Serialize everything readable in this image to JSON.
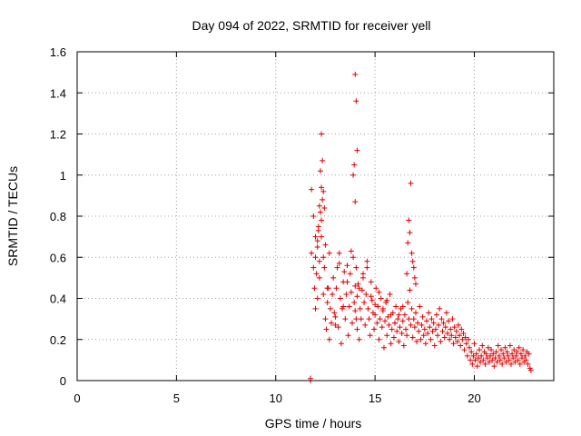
{
  "chart_data": {
    "type": "scatter",
    "title": "Day 094 of 2022, SRMTID for receiver yell",
    "xlabel": "GPS time / hours",
    "ylabel": "SRMTID / TECUs",
    "xlim": [
      0,
      24
    ],
    "ylim": [
      0,
      1.6
    ],
    "x_ticks": [
      0,
      5,
      10,
      15,
      20
    ],
    "x_tick_labels": [
      "0",
      "5",
      "10",
      "15",
      "20"
    ],
    "y_ticks": [
      0,
      0.2,
      0.4,
      0.6,
      0.8,
      1,
      1.2,
      1.4,
      1.6
    ],
    "y_tick_labels": [
      "0",
      "0.2",
      "0.4",
      "0.6",
      "0.8",
      "1",
      "1.2",
      "1.4",
      "1.6"
    ],
    "grid": true,
    "marker": "+",
    "series": [
      {
        "name": "SRMTID",
        "color": "#e00000",
        "x": [
          11.8,
          11.8,
          11.9,
          11.9,
          11.95,
          12.0,
          12.0,
          12.05,
          12.1,
          12.1,
          12.15,
          12.2,
          12.2,
          12.25,
          12.3,
          12.3,
          12.35,
          12.4,
          12.4,
          12.45,
          12.5,
          12.55,
          12.6,
          12.65,
          12.7,
          12.75,
          12.8,
          12.85,
          12.9,
          12.95,
          13.0,
          13.05,
          13.1,
          13.15,
          13.2,
          13.25,
          13.3,
          13.35,
          13.4,
          13.45,
          13.5,
          13.55,
          13.6,
          13.65,
          13.7,
          13.75,
          13.8,
          13.85,
          13.9,
          13.95,
          14.0,
          14.0,
          14.05,
          14.05,
          14.1,
          14.1,
          14.15,
          14.2,
          14.25,
          14.3,
          14.35,
          14.4,
          14.45,
          14.5,
          14.55,
          14.6,
          14.65,
          14.7,
          14.75,
          14.8,
          14.85,
          14.9,
          14.95,
          15.0,
          15.05,
          15.1,
          15.15,
          15.2,
          15.25,
          15.3,
          15.35,
          15.4,
          15.45,
          15.5,
          15.55,
          15.6,
          15.65,
          15.7,
          15.75,
          15.8,
          15.85,
          15.9,
          15.95,
          16.0,
          16.05,
          16.1,
          16.15,
          16.2,
          16.25,
          16.3,
          16.35,
          16.4,
          16.45,
          16.5,
          16.55,
          16.6,
          16.65,
          16.7,
          16.75,
          16.8,
          16.85,
          16.9,
          16.95,
          17.0,
          17.05,
          17.1,
          17.15,
          17.2,
          17.25,
          17.3,
          17.35,
          17.4,
          17.45,
          17.5,
          17.55,
          17.6,
          17.65,
          17.7,
          17.75,
          17.8,
          17.85,
          17.9,
          17.95,
          18.0,
          18.05,
          18.1,
          18.15,
          18.2,
          18.25,
          18.3,
          18.35,
          18.4,
          18.45,
          18.5,
          18.55,
          18.6,
          18.65,
          18.7,
          18.75,
          18.8,
          18.85,
          18.9,
          18.95,
          19.0,
          19.05,
          19.1,
          19.15,
          19.2,
          19.25,
          19.3,
          19.35,
          19.4,
          19.45,
          19.5,
          19.55,
          19.6,
          19.65,
          19.7,
          19.75,
          19.8,
          19.85,
          19.9,
          19.95,
          20.0,
          20.05,
          20.1,
          20.15,
          20.2,
          20.25,
          20.3,
          20.35,
          20.4,
          20.45,
          20.5,
          20.55,
          20.6,
          20.65,
          20.7,
          20.75,
          20.8,
          20.85,
          20.9,
          20.95,
          21.0,
          21.05,
          21.1,
          21.15,
          21.2,
          21.25,
          21.3,
          21.35,
          21.4,
          21.45,
          21.5,
          21.55,
          21.6,
          21.65,
          21.7,
          21.75,
          21.8,
          21.85,
          21.9,
          21.95,
          22.0,
          22.05,
          22.1,
          22.15,
          22.2,
          22.25,
          22.3,
          22.35,
          22.4,
          22.45,
          22.5,
          22.55,
          22.6,
          22.65,
          22.7,
          22.75,
          22.8,
          22.85,
          12.3,
          12.35,
          12.25,
          12.4,
          12.2,
          12.45,
          12.3,
          12.15,
          13.9,
          14.0,
          14.05,
          14.1,
          13.95,
          14.0,
          16.7,
          16.75,
          16.8,
          16.65,
          16.85,
          16.9,
          16.95,
          17.0,
          17.05,
          12.1,
          12.0,
          12.5,
          12.6,
          12.7,
          13.0,
          13.2,
          13.4,
          13.6,
          13.8,
          14.2,
          14.4,
          14.6,
          14.8,
          15.0,
          15.2,
          15.4,
          15.6,
          15.8,
          16.0,
          16.2,
          16.4,
          16.6,
          11.75,
          11.75
        ],
        "y": [
          0.93,
          0.62,
          0.55,
          0.8,
          0.45,
          0.6,
          0.7,
          0.52,
          0.65,
          0.4,
          0.75,
          0.5,
          0.58,
          0.82,
          0.7,
          0.94,
          0.88,
          0.42,
          0.6,
          0.55,
          0.3,
          0.25,
          0.38,
          0.45,
          0.2,
          0.35,
          0.28,
          0.42,
          0.5,
          0.33,
          0.31,
          0.45,
          0.55,
          0.26,
          0.62,
          0.4,
          0.18,
          0.35,
          0.48,
          0.53,
          0.3,
          0.42,
          0.56,
          0.22,
          0.36,
          0.52,
          0.43,
          0.28,
          0.6,
          0.38,
          0.46,
          0.34,
          0.55,
          0.3,
          0.25,
          0.41,
          0.47,
          0.2,
          0.35,
          0.3,
          0.44,
          0.52,
          0.38,
          0.27,
          0.42,
          0.58,
          0.35,
          0.3,
          0.22,
          0.48,
          0.39,
          0.33,
          0.25,
          0.32,
          0.45,
          0.28,
          0.36,
          0.2,
          0.3,
          0.4,
          0.26,
          0.34,
          0.16,
          0.29,
          0.38,
          0.22,
          0.31,
          0.27,
          0.42,
          0.18,
          0.25,
          0.33,
          0.21,
          0.28,
          0.36,
          0.24,
          0.3,
          0.19,
          0.26,
          0.35,
          0.23,
          0.29,
          0.17,
          0.32,
          0.25,
          0.22,
          0.38,
          0.3,
          0.44,
          0.27,
          0.35,
          0.21,
          0.3,
          0.26,
          0.33,
          0.19,
          0.28,
          0.24,
          0.36,
          0.2,
          0.27,
          0.31,
          0.22,
          0.25,
          0.18,
          0.29,
          0.23,
          0.33,
          0.26,
          0.2,
          0.3,
          0.24,
          0.28,
          0.17,
          0.25,
          0.32,
          0.22,
          0.27,
          0.35,
          0.19,
          0.3,
          0.24,
          0.28,
          0.21,
          0.26,
          0.33,
          0.23,
          0.29,
          0.2,
          0.25,
          0.22,
          0.3,
          0.18,
          0.26,
          0.21,
          0.24,
          0.19,
          0.27,
          0.22,
          0.17,
          0.25,
          0.2,
          0.23,
          0.15,
          0.21,
          0.18,
          0.12,
          0.2,
          0.16,
          0.1,
          0.14,
          0.08,
          0.12,
          0.18,
          0.1,
          0.13,
          0.07,
          0.11,
          0.15,
          0.09,
          0.12,
          0.17,
          0.1,
          0.14,
          0.08,
          0.13,
          0.11,
          0.16,
          0.09,
          0.12,
          0.15,
          0.1,
          0.13,
          0.07,
          0.11,
          0.14,
          0.09,
          0.17,
          0.12,
          0.1,
          0.15,
          0.08,
          0.13,
          0.11,
          0.16,
          0.09,
          0.14,
          0.12,
          0.1,
          0.17,
          0.08,
          0.13,
          0.11,
          0.15,
          0.09,
          0.12,
          0.14,
          0.1,
          0.16,
          0.08,
          0.13,
          0.11,
          0.15,
          0.09,
          0.12,
          0.1,
          0.14,
          0.08,
          0.13,
          0.06,
          0.05,
          1.2,
          1.07,
          1.02,
          0.92,
          0.85,
          0.84,
          0.78,
          0.73,
          1.0,
          1.49,
          1.36,
          1.12,
          1.05,
          0.87,
          0.78,
          0.72,
          0.96,
          0.67,
          0.62,
          0.58,
          0.55,
          0.5,
          0.47,
          0.68,
          0.35,
          0.66,
          0.45,
          0.62,
          0.27,
          0.57,
          0.36,
          0.48,
          0.63,
          0.45,
          0.5,
          0.55,
          0.41,
          0.37,
          0.43,
          0.35,
          0.39,
          0.32,
          0.28,
          0.32,
          0.36,
          0.52,
          0.01,
          0.0
        ]
      }
    ]
  }
}
